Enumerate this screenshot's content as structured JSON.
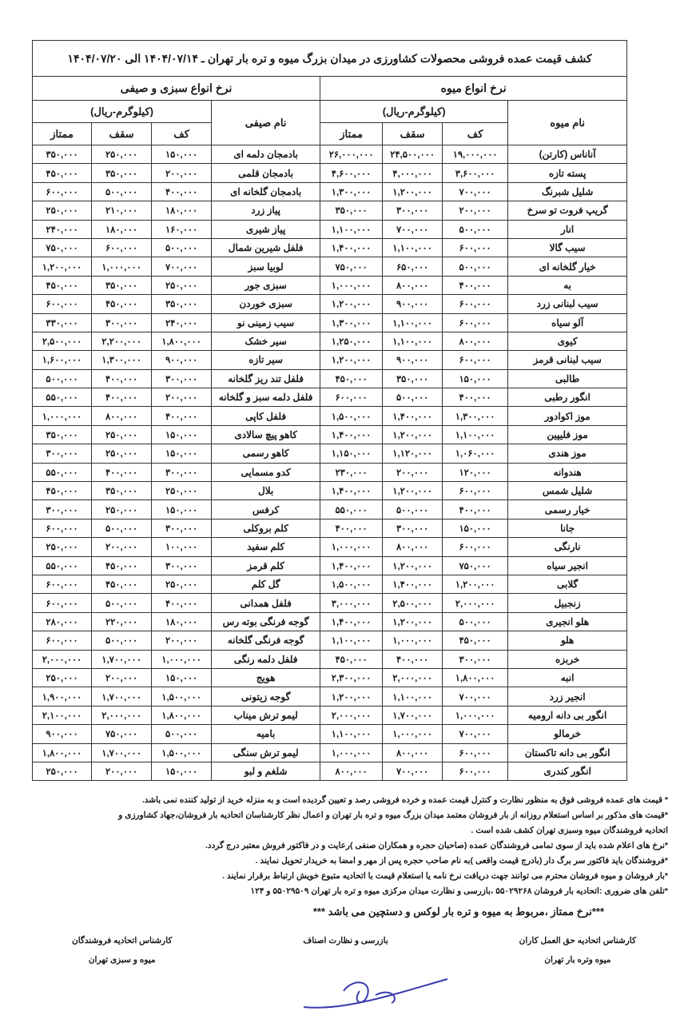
{
  "title": "کشف قیمت عمده فروشی محصولات کشاورزی در میدان بزرگ میوه و تره بار تهران ـ ۱۴۰۴/۰۷/۱۴ الی ۱۴۰۴/۰۷/۲۰",
  "fruit_group": "نرخ انواع میوه",
  "veg_group": "نرخ انواع سبزی و صیفی",
  "unit": "(کیلوگرم-ریال)",
  "fruit_name_header": "نام میوه",
  "veg_name_header": "نام صیفی",
  "kaf": "کف",
  "saqf": "سقف",
  "momtaz": "ممتاز",
  "rows": [
    [
      "آناناس (کارتن)",
      "۱۹,۰۰۰,۰۰۰",
      "۲۴,۵۰۰,۰۰۰",
      "۲۶,۰۰۰,۰۰۰",
      "بادمجان دلمه ای",
      "۱۵۰,۰۰۰",
      "۲۵۰,۰۰۰",
      "۳۵۰,۰۰۰"
    ],
    [
      "پسته تازه",
      "۳,۶۰۰,۰۰۰",
      "۴,۰۰۰,۰۰۰",
      "۴,۶۰۰,۰۰۰",
      "بادمجان قلمی",
      "۲۰۰,۰۰۰",
      "۳۵۰,۰۰۰",
      "۴۵۰,۰۰۰"
    ],
    [
      "شلیل شبرنگ",
      "۷۰۰,۰۰۰",
      "۱,۲۰۰,۰۰۰",
      "۱,۳۰۰,۰۰۰",
      "بادمجان گلخانه ای",
      "۴۰۰,۰۰۰",
      "۵۰۰,۰۰۰",
      "۶۰۰,۰۰۰"
    ],
    [
      "گریپ فروت تو سرخ",
      "۲۰۰,۰۰۰",
      "۳۰۰,۰۰۰",
      "۳۵۰,۰۰۰",
      "پیاز زرد",
      "۱۸۰,۰۰۰",
      "۲۱۰,۰۰۰",
      "۲۵۰,۰۰۰"
    ],
    [
      "انار",
      "۵۰۰,۰۰۰",
      "۷۰۰,۰۰۰",
      "۱,۱۰۰,۰۰۰",
      "پیاز شیری",
      "۱۶۰,۰۰۰",
      "۱۸۰,۰۰۰",
      "۲۴۰,۰۰۰"
    ],
    [
      "سیب گالا",
      "۶۰۰,۰۰۰",
      "۱,۱۰۰,۰۰۰",
      "۱,۴۰۰,۰۰۰",
      "فلفل شیرین شمال",
      "۵۰۰,۰۰۰",
      "۶۰۰,۰۰۰",
      "۷۵۰,۰۰۰"
    ],
    [
      "خیار گلخانه ای",
      "۵۰۰,۰۰۰",
      "۶۵۰,۰۰۰",
      "۷۵۰,۰۰۰",
      "لوبیا سبز",
      "۷۰۰,۰۰۰",
      "۱,۰۰۰,۰۰۰",
      "۱,۲۰۰,۰۰۰"
    ],
    [
      "به",
      "۴۰۰,۰۰۰",
      "۸۰۰,۰۰۰",
      "۱,۰۰۰,۰۰۰",
      "سبزی جور",
      "۲۵۰,۰۰۰",
      "۳۵۰,۰۰۰",
      "۴۵۰,۰۰۰"
    ],
    [
      "سیب لبنانی زرد",
      "۶۰۰,۰۰۰",
      "۹۰۰,۰۰۰",
      "۱,۲۰۰,۰۰۰",
      "سبزی خوردن",
      "۳۵۰,۰۰۰",
      "۴۵۰,۰۰۰",
      "۶۰۰,۰۰۰"
    ],
    [
      "آلو سیاه",
      "۶۰۰,۰۰۰",
      "۱,۱۰۰,۰۰۰",
      "۱,۳۰۰,۰۰۰",
      "سیب زمینی نو",
      "۲۴۰,۰۰۰",
      "۳۰۰,۰۰۰",
      "۳۳۰,۰۰۰"
    ],
    [
      "کیوی",
      "۸۰۰,۰۰۰",
      "۱,۱۰۰,۰۰۰",
      "۱,۲۵۰,۰۰۰",
      "سیر خشک",
      "۱,۸۰۰,۰۰۰",
      "۲,۲۰۰,۰۰۰",
      "۲,۵۰۰,۰۰۰"
    ],
    [
      "سیب لبنانی قرمز",
      "۶۰۰,۰۰۰",
      "۹۰۰,۰۰۰",
      "۱,۲۰۰,۰۰۰",
      "سیر تازه",
      "۹۰۰,۰۰۰",
      "۱,۳۰۰,۰۰۰",
      "۱,۶۰۰,۰۰۰"
    ],
    [
      "طالبی",
      "۱۵۰,۰۰۰",
      "۳۵۰,۰۰۰",
      "۴۵۰,۰۰۰",
      "فلفل تند ریز گلخانه",
      "۳۰۰,۰۰۰",
      "۴۰۰,۰۰۰",
      "۵۰۰,۰۰۰"
    ],
    [
      "انگور رطبی",
      "۴۰۰,۰۰۰",
      "۵۰۰,۰۰۰",
      "۶۰۰,۰۰۰",
      "فلفل دلمه سبز و گلخانه",
      "۲۰۰,۰۰۰",
      "۴۰۰,۰۰۰",
      "۵۵۰,۰۰۰"
    ],
    [
      "موز اکوادور",
      "۱,۳۰۰,۰۰۰",
      "۱,۴۰۰,۰۰۰",
      "۱,۵۰۰,۰۰۰",
      "فلفل کاپی",
      "۴۰۰,۰۰۰",
      "۸۰۰,۰۰۰",
      "۱,۰۰۰,۰۰۰"
    ],
    [
      "موز فلیپین",
      "۱,۱۰۰,۰۰۰",
      "۱,۲۰۰,۰۰۰",
      "۱,۴۰۰,۰۰۰",
      "کاهو پیچ سالادی",
      "۱۵۰,۰۰۰",
      "۲۵۰,۰۰۰",
      "۳۵۰,۰۰۰"
    ],
    [
      "موز هندی",
      "۱,۰۶۰,۰۰۰",
      "۱,۱۲۰,۰۰۰",
      "۱,۱۵۰,۰۰۰",
      "کاهو رسمی",
      "۱۵۰,۰۰۰",
      "۲۵۰,۰۰۰",
      "۳۰۰,۰۰۰"
    ],
    [
      "هندوانه",
      "۱۲۰,۰۰۰",
      "۲۰۰,۰۰۰",
      "۲۳۰,۰۰۰",
      "کدو مسمایی",
      "۳۰۰,۰۰۰",
      "۴۰۰,۰۰۰",
      "۵۵۰,۰۰۰"
    ],
    [
      "شلیل شمس",
      "۶۰۰,۰۰۰",
      "۱,۲۰۰,۰۰۰",
      "۱,۴۰۰,۰۰۰",
      "بلال",
      "۲۵۰,۰۰۰",
      "۳۵۰,۰۰۰",
      "۴۵۰,۰۰۰"
    ],
    [
      "خیار رسمی",
      "۴۰۰,۰۰۰",
      "۵۰۰,۰۰۰",
      "۵۵۰,۰۰۰",
      "کرفس",
      "۱۵۰,۰۰۰",
      "۲۵۰,۰۰۰",
      "۳۰۰,۰۰۰"
    ],
    [
      "جانا",
      "۱۵۰,۰۰۰",
      "۳۰۰,۰۰۰",
      "۴۰۰,۰۰۰",
      "کلم بروکلی",
      "۳۰۰,۰۰۰",
      "۵۰۰,۰۰۰",
      "۶۰۰,۰۰۰"
    ],
    [
      "نارنگی",
      "۶۰۰,۰۰۰",
      "۸۰۰,۰۰۰",
      "۱,۰۰۰,۰۰۰",
      "کلم سفید",
      "۱۰۰,۰۰۰",
      "۲۰۰,۰۰۰",
      "۲۵۰,۰۰۰"
    ],
    [
      "انجیر سیاه",
      "۷۵۰,۰۰۰",
      "۱,۲۰۰,۰۰۰",
      "۱,۴۰۰,۰۰۰",
      "کلم قرمز",
      "۳۰۰,۰۰۰",
      "۴۵۰,۰۰۰",
      "۵۵۰,۰۰۰"
    ],
    [
      "گلابی",
      "۱,۲۰۰,۰۰۰",
      "۱,۴۰۰,۰۰۰",
      "۱,۵۰۰,۰۰۰",
      "گل کلم",
      "۲۵۰,۰۰۰",
      "۴۵۰,۰۰۰",
      "۶۰۰,۰۰۰"
    ],
    [
      "زنجبیل",
      "۲,۰۰۰,۰۰۰",
      "۲,۵۰۰,۰۰۰",
      "۳,۰۰۰,۰۰۰",
      "فلفل همدانی",
      "۴۰۰,۰۰۰",
      "۵۰۰,۰۰۰",
      "۶۰۰,۰۰۰"
    ],
    [
      "هلو انجیری",
      "۵۰۰,۰۰۰",
      "۱,۲۰۰,۰۰۰",
      "۱,۴۰۰,۰۰۰",
      "گوجه فرنگی بوته رس",
      "۱۸۰,۰۰۰",
      "۲۲۰,۰۰۰",
      "۲۸۰,۰۰۰"
    ],
    [
      "هلو",
      "۴۵۰,۰۰۰",
      "۱,۰۰۰,۰۰۰",
      "۱,۱۰۰,۰۰۰",
      "گوجه فرنگی گلخانه",
      "۲۰۰,۰۰۰",
      "۵۰۰,۰۰۰",
      "۶۰۰,۰۰۰"
    ],
    [
      "خربزه",
      "۳۰۰,۰۰۰",
      "۴۰۰,۰۰۰",
      "۴۵۰,۰۰۰",
      "فلفل دلمه رنگی",
      "۱,۰۰۰,۰۰۰",
      "۱,۷۰۰,۰۰۰",
      "۲,۰۰۰,۰۰۰"
    ],
    [
      "انبه",
      "۱,۸۰۰,۰۰۰",
      "۲,۰۰۰,۰۰۰",
      "۲,۳۰۰,۰۰۰",
      "هویج",
      "۱۵۰,۰۰۰",
      "۲۰۰,۰۰۰",
      "۲۵۰,۰۰۰"
    ],
    [
      "انجیر زرد",
      "۷۰۰,۰۰۰",
      "۱,۱۰۰,۰۰۰",
      "۱,۲۰۰,۰۰۰",
      "گوجه زیتونی",
      "۱,۵۰۰,۰۰۰",
      "۱,۷۰۰,۰۰۰",
      "۱,۹۰۰,۰۰۰"
    ],
    [
      "انگور بی دانه ارومیه",
      "۱,۰۰۰,۰۰۰",
      "۱,۷۰۰,۰۰۰",
      "۲,۰۰۰,۰۰۰",
      "لیمو ترش میناب",
      "۱,۸۰۰,۰۰۰",
      "۲,۰۰۰,۰۰۰",
      "۲,۱۰۰,۰۰۰"
    ],
    [
      "خرمالو",
      "۷۰۰,۰۰۰",
      "۱,۰۰۰,۰۰۰",
      "۱,۱۰۰,۰۰۰",
      "بامیه",
      "۵۰۰,۰۰۰",
      "۷۵۰,۰۰۰",
      "۹۰۰,۰۰۰"
    ],
    [
      "انگور بی دانه تاکستان",
      "۶۰۰,۰۰۰",
      "۸۰۰,۰۰۰",
      "۱,۰۰۰,۰۰۰",
      "لیمو ترش سنگی",
      "۱,۵۰۰,۰۰۰",
      "۱,۷۰۰,۰۰۰",
      "۱,۸۰۰,۰۰۰"
    ],
    [
      "انگور کندری",
      "۶۰۰,۰۰۰",
      "۷۰۰,۰۰۰",
      "۸۰۰,۰۰۰",
      "شلغم و لبو",
      "۱۵۰,۰۰۰",
      "۲۰۰,۰۰۰",
      "۲۵۰,۰۰۰"
    ]
  ],
  "notes": [
    "* قیمت های عمده فروشی فوق به منظور نظارت و کنترل قیمت عمده و خرده فروشی رصد و تعیین گردیده است و به منزله خرید از تولید کننده نمی باشد.",
    "*قیمت های مذکور بر اساس استعلام روزانه از بار فروشان معتمد میدان بزرگ میوه و تره بار تهران و اعمال نظر کارشناسان اتحادیه بار فروشان،جهاد کشاورزی و",
    "اتحادیه فروشندگان میوه وسبزی تهران کشف شده است .",
    "*نرخ های اعلام شده باید از سوی تمامی فروشندگان عمده (صاحبان حجره و همکاران صنفی )رعایت و در فاکتور فروش معتبر درج گردد.",
    "*فروشندگان باید فاکتور سر برگ دار (بادرج قیمت واقعی )به نام صاحب حجره پس از مهر و امضا به خریدار تحویل نمایند .",
    "*بار فروشان و میوه فروشان محترم می توانند جهت دریافت نرخ نامه یا استعلام قیمت با اتحادیه متبوع خویش ارتباط برقرار نمایند .",
    "*تلفن های ضروری :اتحادیه بار فروشان ۵۵۰۲۹۲۶۸ ،بازرسی و نظارت میدان مرکزی میوه و تره بار تهران ۵۵۰۲۹۵۰۹ و ۱۲۴"
  ],
  "momtaz_note": "***نرخ ممتاز ،مربوط به میوه و تره بار لوکس و دستچین می باشد ***",
  "signatures": {
    "right": [
      "کارشناس اتحادیه حق العمل کاران",
      "میوه وتره بار تهران"
    ],
    "middle": [
      "بازرسی و نظارت اصناف"
    ],
    "left": [
      "کارشناس اتحادیه فروشندگان",
      "میوه و سبزی تهران"
    ]
  }
}
